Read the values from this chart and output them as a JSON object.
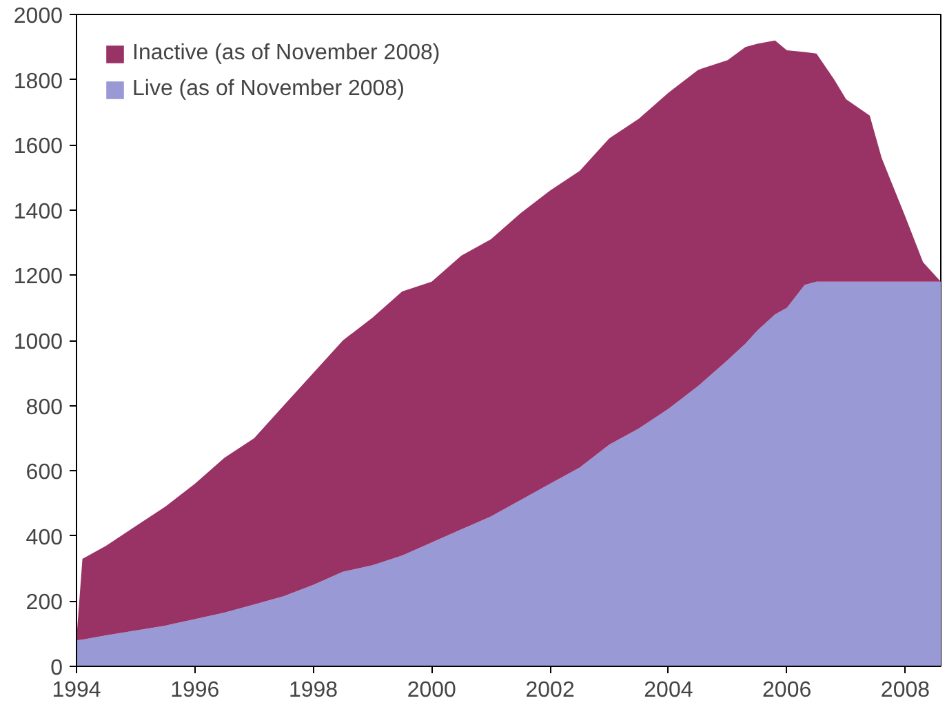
{
  "chart_data": {
    "type": "area",
    "stacked": true,
    "x": [
      1994.0,
      1994.1,
      1994.5,
      1995,
      1995.5,
      1996,
      1996.5,
      1997,
      1997.5,
      1998,
      1998.5,
      1999,
      1999.5,
      2000,
      2000.5,
      2001,
      2001.5,
      2002,
      2002.5,
      2003,
      2003.5,
      2004,
      2004.5,
      2005,
      2005.3,
      2005.5,
      2005.8,
      2006,
      2006.3,
      2006.5,
      2006.8,
      2007,
      2007.4,
      2007.6,
      2008,
      2008.3,
      2008.6
    ],
    "series": [
      {
        "name": "Live (as of November 2008)",
        "color": "#9999d6",
        "values": [
          80,
          82,
          95,
          110,
          125,
          145,
          165,
          190,
          215,
          250,
          290,
          310,
          340,
          380,
          420,
          460,
          510,
          560,
          610,
          680,
          730,
          790,
          860,
          940,
          990,
          1030,
          1080,
          1100,
          1170,
          1180,
          1180,
          1180,
          1180,
          1180,
          1180,
          1180,
          1180
        ]
      },
      {
        "name": "Inactive (as of November 2008)",
        "color": "#993366",
        "values": [
          5,
          248,
          275,
          320,
          365,
          415,
          475,
          510,
          585,
          650,
          710,
          760,
          810,
          800,
          840,
          850,
          880,
          900,
          910,
          940,
          950,
          970,
          970,
          920,
          910,
          880,
          840,
          790,
          715,
          700,
          620,
          560,
          510,
          380,
          200,
          60,
          0
        ]
      }
    ],
    "xlim": [
      1994,
      2008.6
    ],
    "ylim": [
      0,
      2000
    ],
    "xticks": [
      1994,
      1996,
      1998,
      2000,
      2002,
      2004,
      2006,
      2008
    ],
    "yticks": [
      0,
      200,
      400,
      600,
      800,
      1000,
      1200,
      1400,
      1600,
      1800,
      2000
    ],
    "grid": false,
    "legend": "top left"
  }
}
